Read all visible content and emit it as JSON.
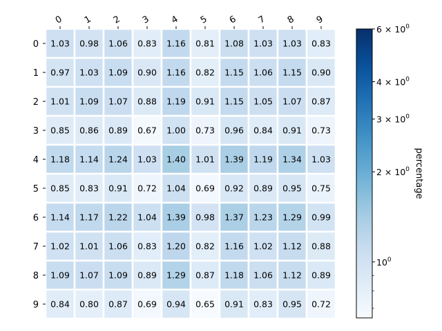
{
  "chart_data": {
    "type": "heatmap",
    "title": "",
    "xlabel": "",
    "ylabel": "",
    "x_ticks": [
      "0",
      "1",
      "2",
      "3",
      "4",
      "5",
      "6",
      "7",
      "8",
      "9"
    ],
    "y_ticks": [
      "0",
      "1",
      "2",
      "3",
      "4",
      "5",
      "6",
      "7",
      "8",
      "9"
    ],
    "values": [
      [
        1.03,
        0.98,
        1.06,
        0.83,
        1.16,
        0.81,
        1.08,
        1.03,
        1.03,
        0.83
      ],
      [
        0.97,
        1.03,
        1.09,
        0.9,
        1.16,
        0.82,
        1.15,
        1.06,
        1.15,
        0.9
      ],
      [
        1.01,
        1.09,
        1.07,
        0.88,
        1.19,
        0.91,
        1.15,
        1.05,
        1.07,
        0.87
      ],
      [
        0.85,
        0.86,
        0.89,
        0.67,
        1.0,
        0.73,
        0.96,
        0.84,
        0.91,
        0.73
      ],
      [
        1.18,
        1.14,
        1.24,
        1.03,
        1.4,
        1.01,
        1.39,
        1.19,
        1.34,
        1.03
      ],
      [
        0.85,
        0.83,
        0.91,
        0.72,
        1.04,
        0.69,
        0.92,
        0.89,
        0.95,
        0.75
      ],
      [
        1.14,
        1.17,
        1.22,
        1.04,
        1.39,
        0.98,
        1.37,
        1.23,
        1.29,
        0.99
      ],
      [
        1.02,
        1.01,
        1.06,
        0.83,
        1.2,
        0.82,
        1.16,
        1.02,
        1.12,
        0.88
      ],
      [
        1.09,
        1.07,
        1.09,
        0.89,
        1.29,
        0.87,
        1.18,
        1.06,
        1.12,
        0.89
      ],
      [
        0.84,
        0.8,
        0.87,
        0.69,
        0.94,
        0.65,
        0.91,
        0.83,
        0.95,
        0.72
      ]
    ],
    "value_format": "0.00",
    "grid": false,
    "colorbar": {
      "label": "percentage",
      "scale": "log",
      "colormap": "Blues",
      "vmin": 0.65,
      "vmax": 6.0,
      "major_ticks": [
        {
          "value": 1,
          "base": "10",
          "exp": "0",
          "coef": ""
        },
        {
          "value": 2,
          "base": "10",
          "exp": "0",
          "coef": "2 × "
        },
        {
          "value": 3,
          "base": "10",
          "exp": "0",
          "coef": "3 × "
        },
        {
          "value": 4,
          "base": "10",
          "exp": "0",
          "coef": "4 × "
        },
        {
          "value": 6,
          "base": "10",
          "exp": "0",
          "coef": "6 × "
        }
      ],
      "minor_ticks": [
        0.7,
        0.8,
        0.9
      ]
    },
    "colors": {
      "cell_gap": "#ffffff",
      "text": "#000000"
    }
  }
}
